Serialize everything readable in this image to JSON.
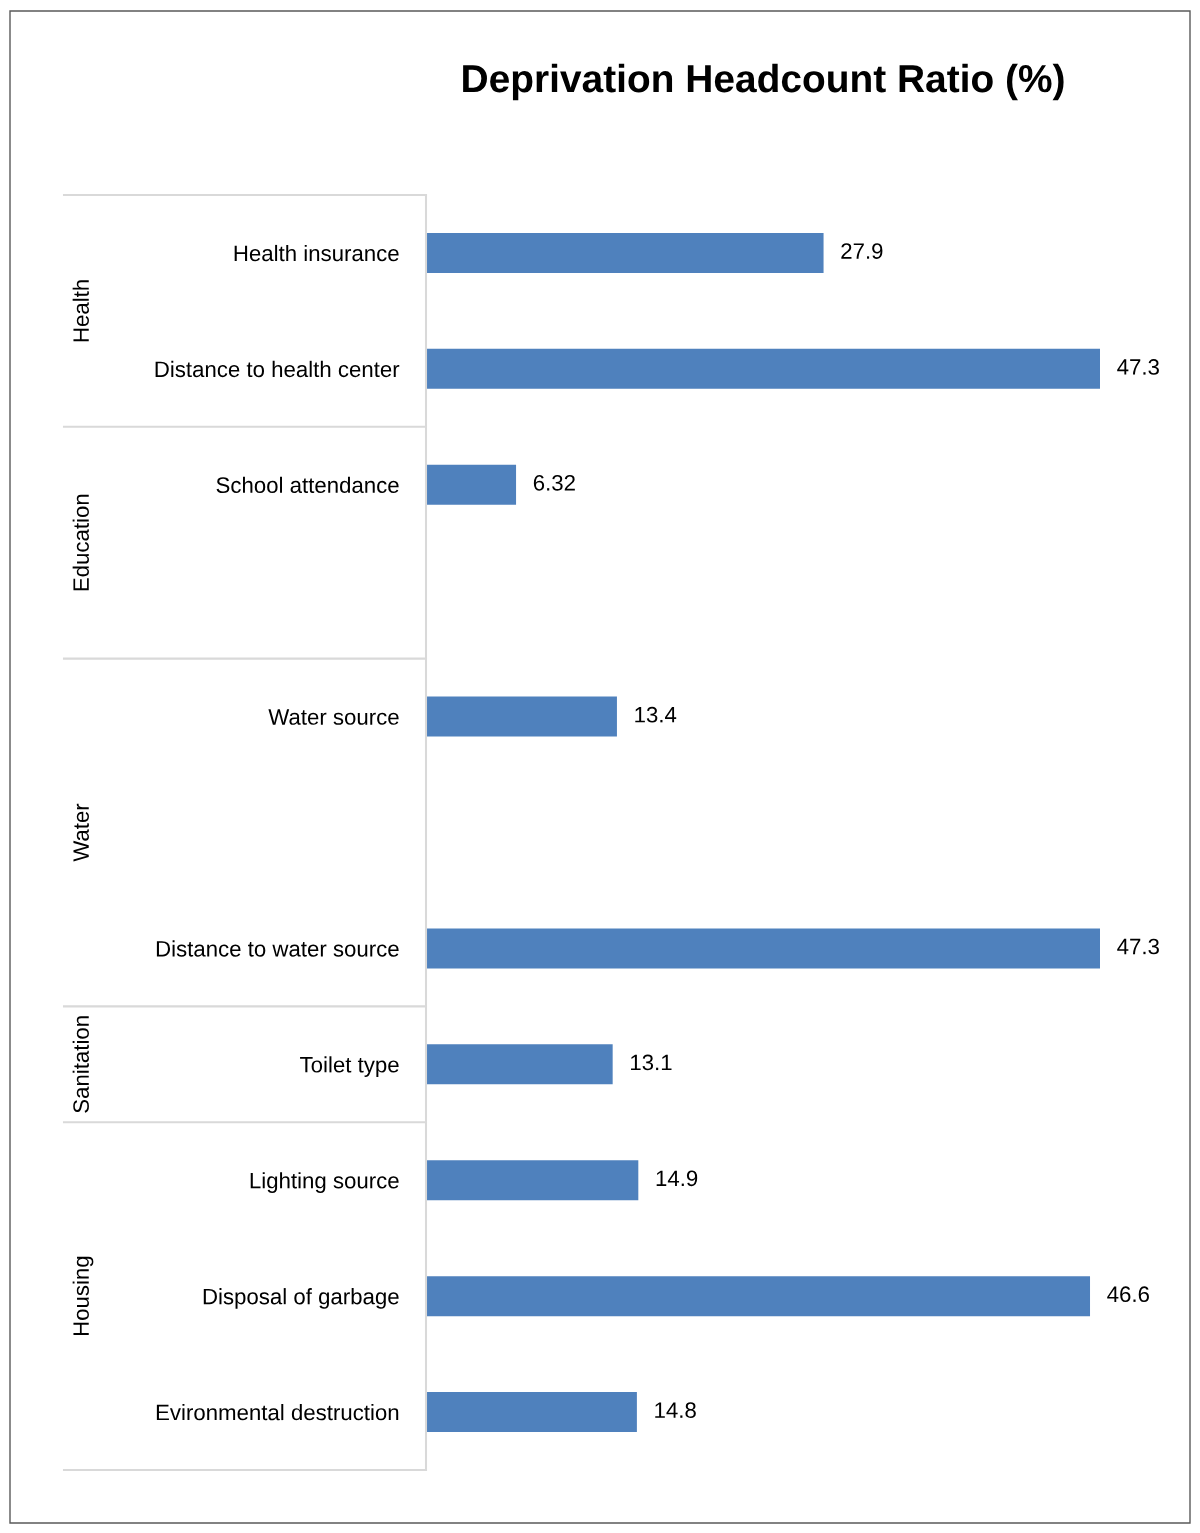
{
  "chart_data": {
    "type": "bar",
    "orientation": "horizontal",
    "title": "Deprivation Headcount Ratio (%)",
    "categories": [
      "Health insurance",
      "Distance to health center",
      "School attendance",
      null,
      "Water source",
      null,
      "Distance to water source",
      "Toilet type",
      "Lighting source",
      "Disposal of garbage",
      "Evironmental destruction"
    ],
    "values": [
      27.9,
      47.3,
      6.32,
      null,
      13.4,
      null,
      47.3,
      13.1,
      14.9,
      46.6,
      14.8
    ],
    "color": "#4f81bd",
    "data_labels": true,
    "annotations": [
      "Health",
      "Education",
      "Water",
      "Sanitation",
      "Housing"
    ]
  }
}
